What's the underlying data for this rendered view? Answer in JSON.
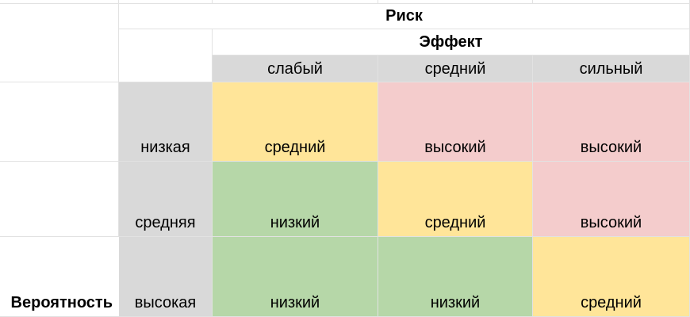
{
  "header": {
    "risk": "Риск",
    "effect": "Эффект"
  },
  "columns": [
    "слабый",
    "средний",
    "сильный"
  ],
  "row_group_label": "Вероятность",
  "rows": [
    {
      "label": "низкая",
      "cells": [
        "средний",
        "высокий",
        "высокий"
      ]
    },
    {
      "label": "средняя",
      "cells": [
        "низкий",
        "средний",
        "высокий"
      ]
    },
    {
      "label": "высокая",
      "cells": [
        "низкий",
        "низкий",
        "средний"
      ]
    }
  ]
}
